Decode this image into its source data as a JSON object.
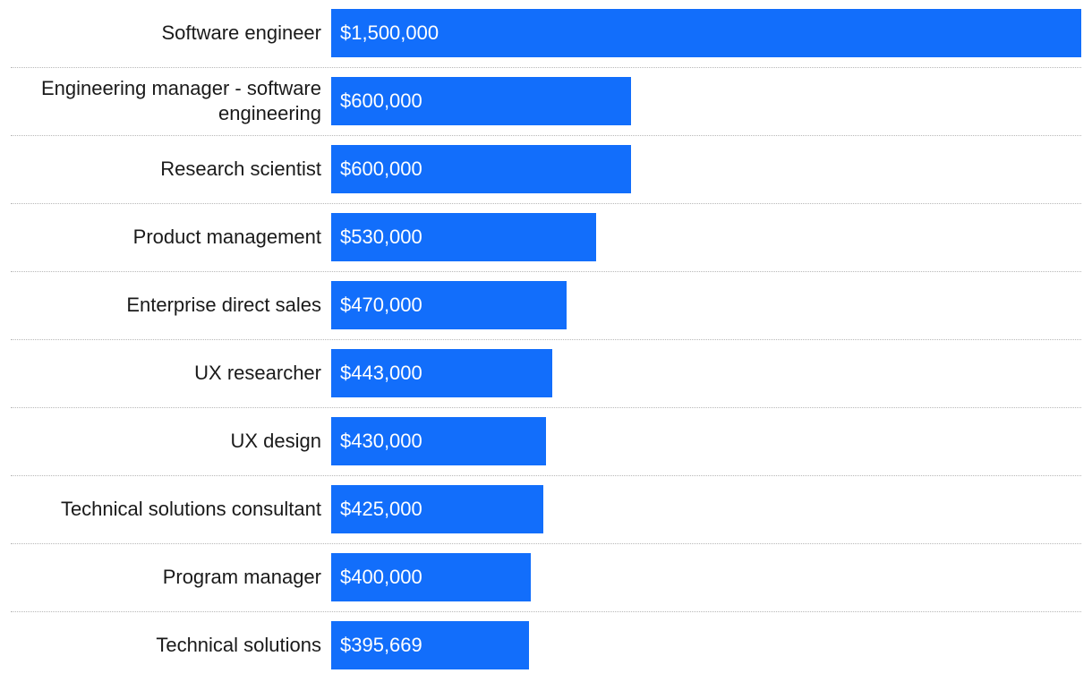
{
  "chart_data": {
    "type": "bar",
    "orientation": "horizontal",
    "title": "",
    "xlabel": "",
    "ylabel": "",
    "bar_color": "#126efb",
    "xlim": [
      0,
      1500000
    ],
    "categories": [
      "Software engineer",
      "Engineering manager - software engineering",
      "Research scientist",
      "Product management",
      "Enterprise direct sales",
      "UX researcher",
      "UX design",
      "Technical solutions consultant",
      "Program manager",
      "Technical solutions"
    ],
    "values": [
      1500000,
      600000,
      600000,
      530000,
      470000,
      443000,
      430000,
      425000,
      400000,
      395669
    ],
    "value_labels": [
      "$1,500,000",
      "$600,000",
      "$600,000",
      "$530,000",
      "$470,000",
      "$443,000",
      "$430,000",
      "$425,000",
      "$400,000",
      "$395,669"
    ]
  }
}
